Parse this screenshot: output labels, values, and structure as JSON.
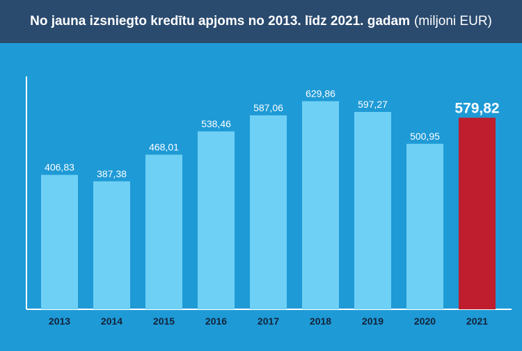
{
  "chart_data": {
    "type": "bar",
    "title": "No jauna izsniegto kredītu apjoms no 2013. līdz 2021. gadam",
    "unit_label": "(miljoni EUR)",
    "xlabel": "",
    "ylabel": "",
    "categories": [
      "2013",
      "2014",
      "2015",
      "2016",
      "2017",
      "2018",
      "2019",
      "2020",
      "2021"
    ],
    "values": [
      406.83,
      387.38,
      468.01,
      538.46,
      587.06,
      629.86,
      597.27,
      500.95,
      579.82
    ],
    "value_labels": [
      "406,83",
      "387,38",
      "468,01",
      "538,46",
      "587,06",
      "629,86",
      "597,27",
      "500,95",
      "579,82"
    ],
    "highlight_index": 8,
    "ylim": [
      0,
      690
    ],
    "grid": false,
    "legend": "none",
    "colors": {
      "background": "#1e9ad6",
      "title_bar": "#2a4a6e",
      "bar": "#6fd0f5",
      "highlight_bar": "#be1e2d",
      "text": "#ffffff",
      "year_label": "#13233a"
    }
  }
}
